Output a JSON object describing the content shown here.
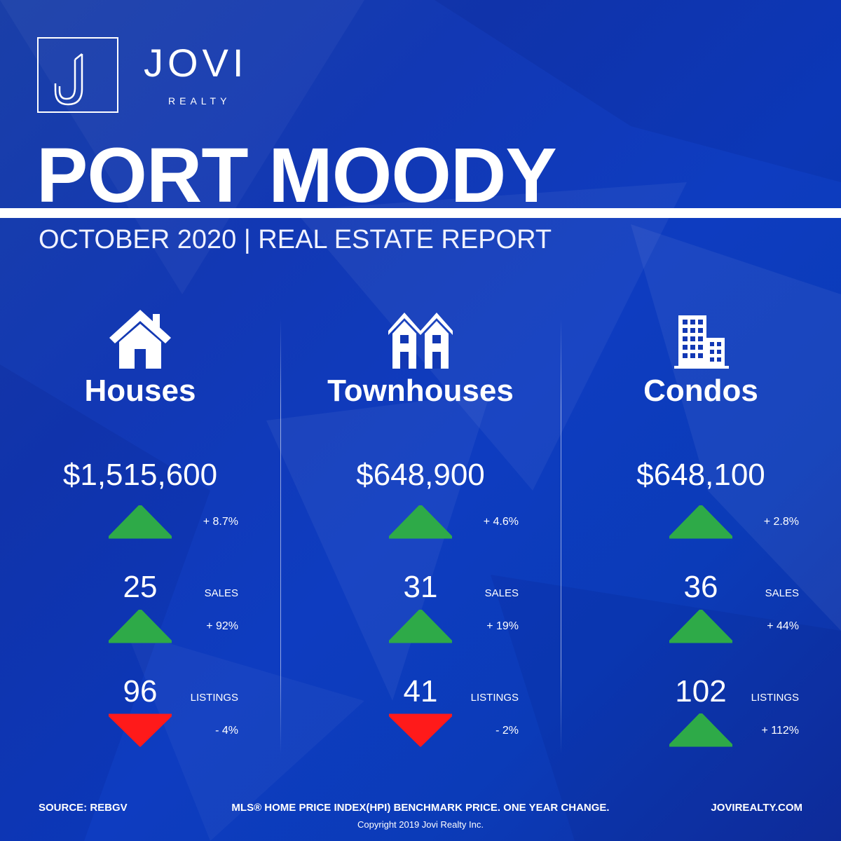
{
  "brand": {
    "name": "JOVI",
    "sub": "REALTY",
    "monogram": "J"
  },
  "header": {
    "title": "PORT MOODY",
    "subtitle": "OCTOBER 2020 | REAL ESTATE REPORT"
  },
  "colors": {
    "background": "#1238b4",
    "up": "#2eaa48",
    "down": "#ff1a1a",
    "text": "#ffffff"
  },
  "columns": [
    {
      "icon": "house-icon",
      "title": "Houses",
      "price": "$1,515,600",
      "price_change": {
        "direction": "up",
        "text": "+ 8.7%"
      },
      "sales": {
        "value": "25",
        "label": "SALES",
        "direction": "up",
        "change": "+ 92%"
      },
      "listings": {
        "value": "96",
        "label": "LISTINGS",
        "direction": "down",
        "change": "- 4%"
      }
    },
    {
      "icon": "townhouse-icon",
      "title": "Townhouses",
      "price": "$648,900",
      "price_change": {
        "direction": "up",
        "text": "+ 4.6%"
      },
      "sales": {
        "value": "31",
        "label": "SALES",
        "direction": "up",
        "change": "+ 19%"
      },
      "listings": {
        "value": "41",
        "label": "LISTINGS",
        "direction": "down",
        "change": "- 2%"
      }
    },
    {
      "icon": "condo-building-icon",
      "title": "Condos",
      "price": "$648,100",
      "price_change": {
        "direction": "up",
        "text": "+ 2.8%"
      },
      "sales": {
        "value": "36",
        "label": "SALES",
        "direction": "up",
        "change": "+ 44%"
      },
      "listings": {
        "value": "102",
        "label": "LISTINGS",
        "direction": "up",
        "change": "+ 112%"
      }
    }
  ],
  "footer": {
    "source": "SOURCE:  REBGV",
    "note": "MLS® HOME PRICE INDEX(HPI) BENCHMARK PRICE. ONE YEAR CHANGE.",
    "website": "JOVIREALTY.COM",
    "copyright": "Copyright 2019 Jovi Realty Inc."
  }
}
